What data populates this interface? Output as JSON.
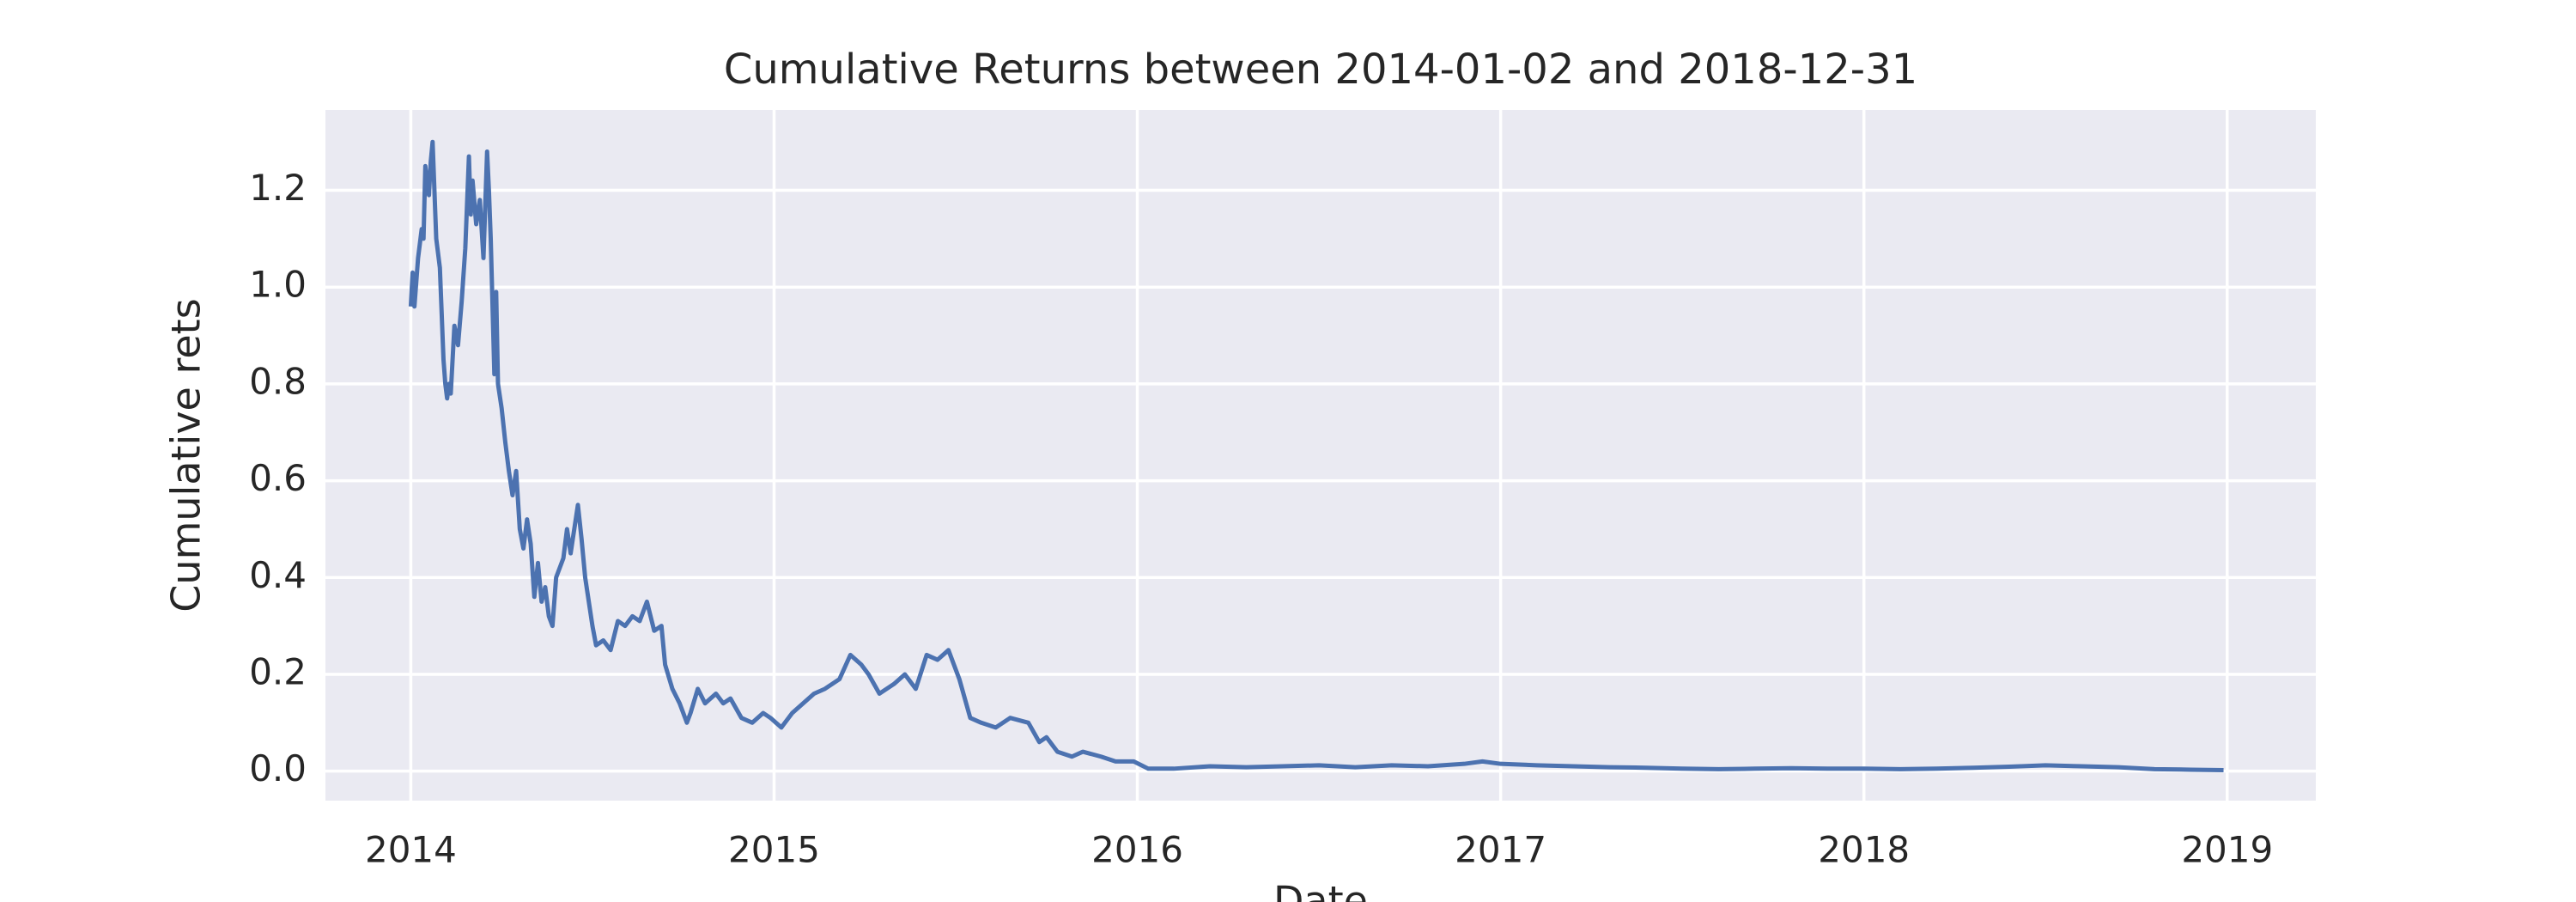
{
  "chart_data": {
    "type": "line",
    "title": "Cumulative Returns between 2014-01-02 and 2018-12-31",
    "x_label": "Date",
    "y_label": "Cumulative rets",
    "color": "#4c72b0",
    "grid": true,
    "xlim": [
      2013.765,
      2019.244
    ],
    "xticks": [
      2014,
      2015,
      2016,
      2017,
      2018,
      2019
    ],
    "ylim": [
      -0.061,
      1.366
    ],
    "yticks": [
      {
        "value": 0,
        "label": "0.0"
      },
      0.2,
      0.4,
      0.6,
      0.8,
      {
        "value": 1,
        "label": "1.0"
      },
      1.2
    ],
    "x": [
      2014.0,
      2014.005,
      2014.01,
      2014.02,
      2014.03,
      2014.035,
      2014.04,
      2014.05,
      2014.055,
      2014.06,
      2014.065,
      2014.07,
      2014.08,
      2014.09,
      2014.095,
      2014.1,
      2014.105,
      2014.11,
      2014.12,
      2014.13,
      2014.14,
      2014.15,
      2014.16,
      2014.165,
      2014.17,
      2014.18,
      2014.19,
      2014.2,
      2014.21,
      2014.215,
      2014.22,
      2014.23,
      2014.235,
      2014.24,
      2014.25,
      2014.26,
      2014.27,
      2014.28,
      2014.29,
      2014.3,
      2014.31,
      2014.32,
      2014.33,
      2014.34,
      2014.35,
      2014.36,
      2014.37,
      2014.38,
      2014.39,
      2014.4,
      2014.42,
      2014.43,
      2014.44,
      2014.46,
      2014.47,
      2014.48,
      2014.5,
      2014.51,
      2014.53,
      2014.55,
      2014.57,
      2014.59,
      2014.61,
      2014.63,
      2014.65,
      2014.67,
      2014.69,
      2014.7,
      2014.72,
      2014.74,
      2014.76,
      2014.77,
      2014.79,
      2014.81,
      2014.84,
      2014.86,
      2014.88,
      2014.91,
      2014.94,
      2014.97,
      2014.99,
      2015.02,
      2015.05,
      2015.08,
      2015.11,
      2015.14,
      2015.18,
      2015.21,
      2015.24,
      2015.26,
      2015.29,
      2015.33,
      2015.36,
      2015.39,
      2015.42,
      2015.45,
      2015.48,
      2015.51,
      2015.54,
      2015.57,
      2015.61,
      2015.65,
      2015.7,
      2015.73,
      2015.75,
      2015.78,
      2015.82,
      2015.85,
      2015.9,
      2015.94,
      2015.99,
      2016.03,
      2016.1,
      2016.2,
      2016.3,
      2016.4,
      2016.5,
      2016.6,
      2016.7,
      2016.8,
      2016.9,
      2016.95,
      2017.0,
      2017.1,
      2017.2,
      2017.3,
      2017.4,
      2017.5,
      2017.6,
      2017.7,
      2017.8,
      2017.9,
      2018.0,
      2018.1,
      2018.2,
      2018.3,
      2018.4,
      2018.5,
      2018.6,
      2018.7,
      2018.8,
      2018.9,
      2018.99
    ],
    "values": [
      0.96,
      1.03,
      0.96,
      1.06,
      1.12,
      1.1,
      1.25,
      1.19,
      1.26,
      1.3,
      1.2,
      1.1,
      1.04,
      0.85,
      0.8,
      0.77,
      0.8,
      0.78,
      0.92,
      0.88,
      0.97,
      1.08,
      1.27,
      1.15,
      1.22,
      1.13,
      1.18,
      1.06,
      1.28,
      1.2,
      1.1,
      0.82,
      0.99,
      0.8,
      0.75,
      0.68,
      0.62,
      0.57,
      0.62,
      0.5,
      0.46,
      0.52,
      0.47,
      0.36,
      0.43,
      0.35,
      0.38,
      0.32,
      0.3,
      0.4,
      0.44,
      0.5,
      0.45,
      0.55,
      0.48,
      0.4,
      0.3,
      0.26,
      0.27,
      0.25,
      0.31,
      0.3,
      0.32,
      0.31,
      0.35,
      0.29,
      0.3,
      0.22,
      0.17,
      0.14,
      0.1,
      0.12,
      0.17,
      0.14,
      0.16,
      0.14,
      0.15,
      0.11,
      0.1,
      0.12,
      0.11,
      0.09,
      0.12,
      0.14,
      0.16,
      0.17,
      0.19,
      0.24,
      0.22,
      0.2,
      0.16,
      0.18,
      0.2,
      0.17,
      0.24,
      0.23,
      0.25,
      0.19,
      0.11,
      0.1,
      0.09,
      0.11,
      0.1,
      0.06,
      0.07,
      0.04,
      0.03,
      0.04,
      0.03,
      0.02,
      0.02,
      0.005,
      0.005,
      0.01,
      0.008,
      0.01,
      0.012,
      0.008,
      0.012,
      0.01,
      0.015,
      0.02,
      0.015,
      0.012,
      0.01,
      0.008,
      0.007,
      0.005,
      0.004,
      0.005,
      0.006,
      0.005,
      0.005,
      0.004,
      0.005,
      0.007,
      0.009,
      0.012,
      0.01,
      0.008,
      0.004,
      0.003,
      0.002
    ]
  }
}
